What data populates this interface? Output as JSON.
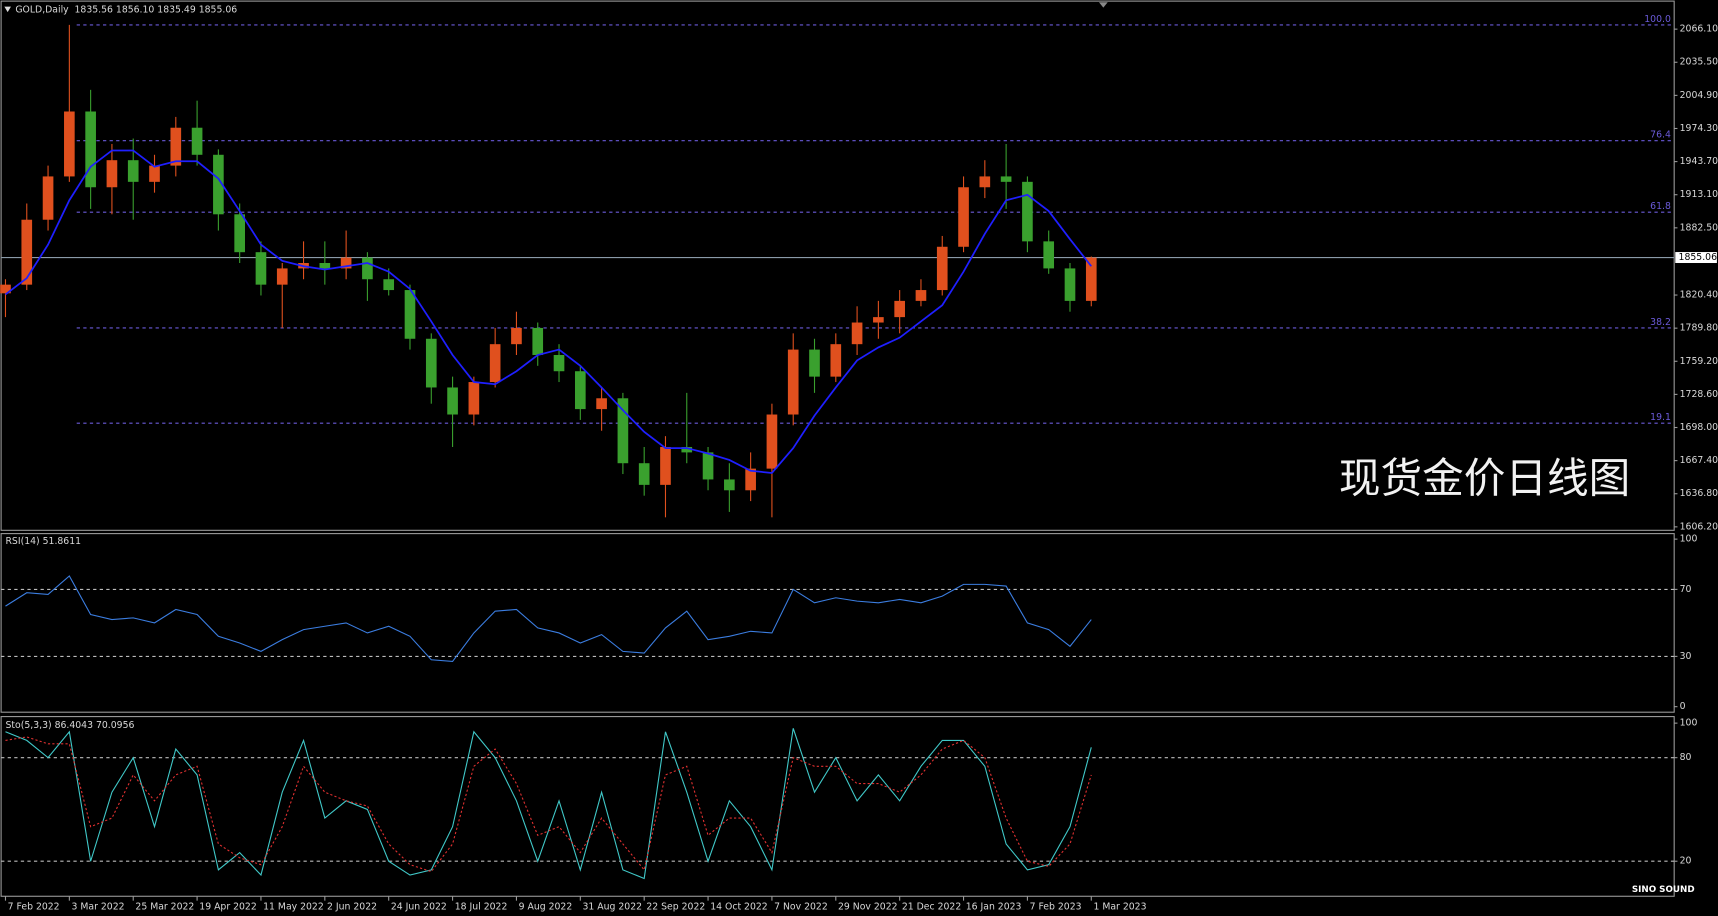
{
  "chart_data": [
    {
      "type": "candlestick",
      "title": "GOLD,Daily",
      "subtitle": "1835.56 1856.10 1835.49 1855.06",
      "annotation": "现货金价日线图",
      "categories": [
        "7 Feb 2022",
        null,
        null,
        "3 Mar 2022",
        null,
        null,
        "25 Mar 2022",
        null,
        null,
        "19 Apr 2022",
        null,
        null,
        "11 May 2022",
        null,
        null,
        "2 Jun 2022",
        null,
        null,
        "24 Jun 2022",
        null,
        null,
        "18 Jul 2022",
        null,
        null,
        "9 Aug 2022",
        null,
        null,
        "31 Aug 2022",
        null,
        null,
        "22 Sep 2022",
        null,
        null,
        "14 Oct 2022",
        null,
        null,
        "7 Nov 2022",
        null,
        null,
        "29 Nov 2022",
        null,
        null,
        "21 Dec 2022",
        null,
        null,
        "16 Jan 2023",
        null,
        null,
        "7 Feb 2023",
        null,
        null,
        "1 Mar 2023"
      ],
      "open": [
        1822,
        1830,
        1890,
        1930,
        1990,
        1920,
        1945,
        1925,
        1940,
        1975,
        1950,
        1895,
        1860,
        1830,
        1845,
        1850,
        1845,
        1855,
        1835,
        1825,
        1780,
        1735,
        1710,
        1740,
        1775,
        1790,
        1765,
        1750,
        1715,
        1725,
        1665,
        1645,
        1680,
        1675,
        1650,
        1640,
        1660,
        1710,
        1770,
        1745,
        1775,
        1795,
        1800,
        1815,
        1825,
        1865,
        1920,
        1930,
        1925,
        1870,
        1845,
        1815
      ],
      "high": [
        1835,
        1905,
        1940,
        2070,
        2010,
        1960,
        1965,
        1950,
        1985,
        2000,
        1955,
        1905,
        1870,
        1850,
        1870,
        1870,
        1880,
        1860,
        1845,
        1830,
        1785,
        1745,
        1745,
        1790,
        1805,
        1795,
        1775,
        1755,
        1735,
        1730,
        1680,
        1690,
        1730,
        1680,
        1665,
        1675,
        1720,
        1785,
        1780,
        1785,
        1810,
        1815,
        1825,
        1835,
        1875,
        1930,
        1945,
        1960,
        1930,
        1880,
        1850,
        1856
      ],
      "low": [
        1800,
        1825,
        1880,
        1925,
        1900,
        1895,
        1890,
        1915,
        1930,
        1940,
        1880,
        1850,
        1820,
        1790,
        1835,
        1830,
        1835,
        1815,
        1820,
        1770,
        1720,
        1680,
        1700,
        1735,
        1765,
        1755,
        1740,
        1705,
        1695,
        1655,
        1635,
        1615,
        1665,
        1640,
        1620,
        1630,
        1615,
        1700,
        1730,
        1740,
        1765,
        1780,
        1785,
        1810,
        1820,
        1860,
        1910,
        1900,
        1860,
        1840,
        1805,
        1810
      ],
      "close": [
        1830,
        1890,
        1930,
        1990,
        1920,
        1945,
        1925,
        1940,
        1975,
        1950,
        1895,
        1860,
        1830,
        1845,
        1850,
        1845,
        1855,
        1835,
        1825,
        1780,
        1735,
        1710,
        1740,
        1775,
        1790,
        1765,
        1750,
        1715,
        1725,
        1665,
        1645,
        1680,
        1675,
        1650,
        1640,
        1660,
        1710,
        1770,
        1745,
        1775,
        1795,
        1800,
        1815,
        1825,
        1865,
        1920,
        1930,
        1925,
        1870,
        1845,
        1815,
        1855
      ],
      "up_color": "#e0501e",
      "down_color": "#3aa02e",
      "ma": {
        "color": "#1f1fff",
        "values": [
          1821,
          1836,
          1867,
          1908,
          1939,
          1954,
          1954,
          1939,
          1944,
          1944,
          1928,
          1898,
          1867,
          1852,
          1847,
          1844,
          1847,
          1850,
          1842,
          1826,
          1796,
          1765,
          1740,
          1738,
          1750,
          1765,
          1770,
          1755,
          1735,
          1714,
          1694,
          1679,
          1679,
          1674,
          1668,
          1658,
          1656,
          1679,
          1709,
          1735,
          1760,
          1772,
          1781,
          1796,
          1811,
          1842,
          1877,
          1908,
          1913,
          1898,
          1872,
          1847
        ]
      },
      "current_price": 1855.06,
      "price_line_color": "#8a9aa8",
      "fib_color": "#6a5ad8",
      "fib_levels": [
        {
          "label": "100.0",
          "value": 2070
        },
        {
          "label": "76.4",
          "value": 1963
        },
        {
          "label": "61.8",
          "value": 1897
        },
        {
          "label": "38.2",
          "value": 1790
        },
        {
          "label": "19.1",
          "value": 1702
        }
      ],
      "ylim": [
        1603,
        2092
      ],
      "yticks": [
        {
          "value": 2066.1,
          "label": "2066.10"
        },
        {
          "value": 2035.5,
          "label": "2035.50"
        },
        {
          "value": 2004.9,
          "label": "2004.90"
        },
        {
          "value": 1974.3,
          "label": "1974.30"
        },
        {
          "value": 1943.7,
          "label": "1943.70"
        },
        {
          "value": 1913.1,
          "label": "1913.10"
        },
        {
          "value": 1882.5,
          "label": "1882.50"
        },
        {
          "value": 1820.4,
          "label": "1820.40"
        },
        {
          "value": 1789.8,
          "label": "1789.80"
        },
        {
          "value": 1759.2,
          "label": "1759.20"
        },
        {
          "value": 1728.6,
          "label": "1728.60"
        },
        {
          "value": 1698.0,
          "label": "1698.00"
        },
        {
          "value": 1667.4,
          "label": "1667.40"
        },
        {
          "value": 1636.8,
          "label": "1636.80"
        },
        {
          "value": 1606.2,
          "label": "1606.20"
        }
      ]
    },
    {
      "type": "line",
      "title": "RSI(14) 51.8611",
      "series": [
        {
          "color": "#3b7de0",
          "values": [
            60,
            68,
            67,
            78,
            55,
            52,
            53,
            50,
            58,
            55,
            42,
            38,
            33,
            40,
            46,
            48,
            50,
            44,
            48,
            42,
            28,
            27,
            44,
            57,
            58,
            47,
            44,
            38,
            43,
            33,
            32,
            47,
            57,
            40,
            42,
            45,
            44,
            70,
            62,
            65,
            63,
            62,
            64,
            62,
            66,
            73,
            73,
            72,
            50,
            46,
            36,
            52
          ]
        }
      ],
      "levels": [
        30,
        70
      ],
      "ylim": [
        -3.3,
        103.3
      ],
      "yticks": [
        0,
        30,
        70,
        100
      ]
    },
    {
      "type": "line",
      "title": "Sto(5,3,3) 86.4043 70.0956",
      "series": [
        {
          "color": "#40c8c8",
          "values": [
            95,
            90,
            80,
            95,
            20,
            60,
            80,
            40,
            85,
            70,
            15,
            25,
            12,
            60,
            90,
            45,
            55,
            50,
            20,
            12,
            15,
            40,
            95,
            80,
            55,
            20,
            55,
            15,
            60,
            15,
            10,
            95,
            60,
            20,
            55,
            40,
            15,
            97,
            60,
            80,
            55,
            70,
            55,
            75,
            90,
            90,
            75,
            30,
            15,
            18,
            40,
            86
          ]
        },
        {
          "color": "#e03030",
          "dashed": true,
          "values": [
            90,
            92,
            88,
            88,
            40,
            45,
            70,
            55,
            70,
            75,
            30,
            22,
            18,
            40,
            75,
            60,
            55,
            52,
            30,
            18,
            14,
            30,
            75,
            85,
            65,
            35,
            40,
            25,
            45,
            30,
            15,
            70,
            75,
            35,
            45,
            45,
            25,
            80,
            75,
            75,
            65,
            65,
            60,
            70,
            85,
            90,
            80,
            45,
            20,
            17,
            30,
            70
          ]
        }
      ],
      "levels": [
        20,
        80
      ],
      "ylim": [
        -0.3,
        103.8
      ],
      "yticks": [
        20,
        80,
        100
      ]
    }
  ],
  "logo": "SINO SOUND"
}
